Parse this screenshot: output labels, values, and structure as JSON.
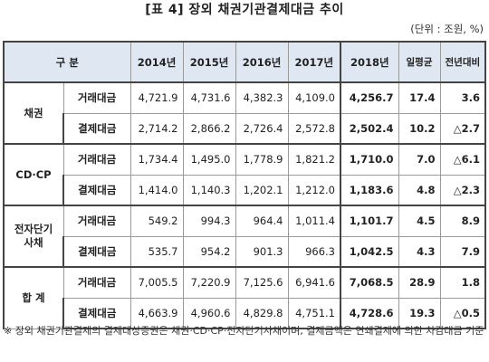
{
  "title": "[표 4] 장외 채권기관결제대금 추이",
  "unit": "(단위 : 조원, %)",
  "table": {
    "headers": [
      "구  분",
      "2014년",
      "2015년",
      "2016년",
      "2017년",
      "2018년",
      "일평균",
      "전년대비"
    ],
    "groups": [
      {
        "category": "채권",
        "rows": [
          {
            "label": "거래대금",
            "y2014": "4,721.9",
            "y2015": "4,731.6",
            "y2016": "4,382.3",
            "y2017": "4,109.0",
            "y2018": "4,256.7",
            "daily": "17.4",
            "yoy": "3.6"
          },
          {
            "label": "결제대금",
            "y2014": "2,714.2",
            "y2015": "2,866.2",
            "y2016": "2,726.4",
            "y2017": "2,572.8",
            "y2018": "2,502.4",
            "daily": "10.2",
            "yoy": "△2.7"
          }
        ]
      },
      {
        "category": "CD·CP",
        "rows": [
          {
            "label": "거래대금",
            "y2014": "1,734.4",
            "y2015": "1,495.0",
            "y2016": "1,778.9",
            "y2017": "1,821.2",
            "y2018": "1,710.0",
            "daily": "7.0",
            "yoy": "△6.1"
          },
          {
            "label": "결제대금",
            "y2014": "1,414.0",
            "y2015": "1,140.3",
            "y2016": "1,202.1",
            "y2017": "1,212.0",
            "y2018": "1,183.6",
            "daily": "4.8",
            "yoy": "△2.3"
          }
        ]
      },
      {
        "category": "전자단기\n사채",
        "rows": [
          {
            "label": "거래대금",
            "y2014": "549.2",
            "y2015": "994.3",
            "y2016": "964.4",
            "y2017": "1,011.4",
            "y2018": "1,101.7",
            "daily": "4.5",
            "yoy": "8.9"
          },
          {
            "label": "결제대금",
            "y2014": "535.7",
            "y2015": "954.2",
            "y2016": "901.3",
            "y2017": "966.3",
            "y2018": "1,042.5",
            "daily": "4.3",
            "yoy": "7.9"
          }
        ]
      },
      {
        "category": "합  계",
        "rows": [
          {
            "label": "거래대금",
            "y2014": "7,005.5",
            "y2015": "7,220.9",
            "y2016": "7,125.6",
            "y2017": "6,941.6",
            "y2018": "7,068.5",
            "daily": "28.9",
            "yoy": "1.8"
          },
          {
            "label": "결제대금",
            "y2014": "4,663.9",
            "y2015": "4,960.6",
            "y2016": "4,829.8",
            "y2017": "4,751.1",
            "y2018": "4,728.6",
            "daily": "19.3",
            "yoy": "△0.5"
          }
        ]
      }
    ]
  },
  "note": "※ 장외 채권기관결제의 결제대상증권은 채권·CD·CP·전자단기사채이며, 결제금액은 연쇄결제에 의한 차감대금 기준"
}
